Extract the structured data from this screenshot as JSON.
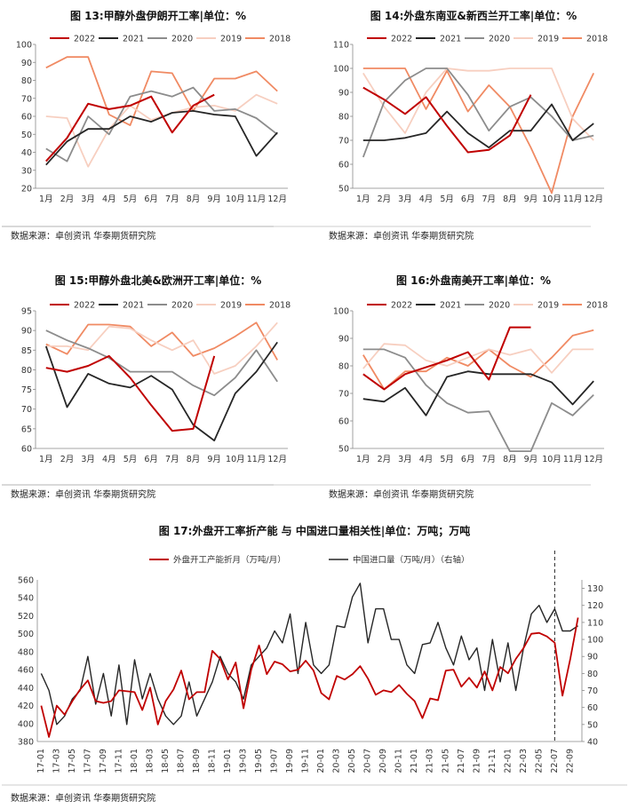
{
  "source_label": "数据来源：卓创资讯  华泰期货研究院",
  "colors": {
    "2022": "#c00000",
    "2021": "#262626",
    "2020": "#8c8c8c",
    "2019": "#f7cfc0",
    "2018": "#f08a63",
    "red": "#c00000",
    "black": "#262626"
  },
  "chart_data": [
    {
      "type": "line",
      "title": "图 13:甲醇外盘伊朗开工率|单位：%",
      "categories": [
        "1月",
        "2月",
        "3月",
        "4月",
        "5月",
        "6月",
        "7月",
        "8月",
        "9月",
        "10月",
        "11月",
        "12月"
      ],
      "ylim": [
        20,
        100
      ],
      "yticks": [
        20,
        30,
        40,
        50,
        60,
        70,
        80,
        90,
        100
      ],
      "series": [
        {
          "name": "2022",
          "values": [
            35,
            48,
            67,
            64,
            66,
            71,
            51,
            66,
            72,
            null,
            null,
            null
          ]
        },
        {
          "name": "2021",
          "values": [
            33,
            46,
            53,
            53,
            60,
            57,
            62,
            63,
            61,
            60,
            38,
            51
          ]
        },
        {
          "name": "2020",
          "values": [
            42,
            35,
            60,
            50,
            71,
            74,
            71,
            76,
            63,
            64,
            59,
            50
          ]
        },
        {
          "name": "2019",
          "values": [
            60,
            59,
            32,
            53,
            66,
            58,
            62,
            65,
            66,
            63,
            72,
            67
          ]
        },
        {
          "name": "2018",
          "values": [
            87,
            93,
            93,
            61,
            55,
            85,
            84,
            63,
            81,
            81,
            85,
            74
          ]
        }
      ]
    },
    {
      "type": "line",
      "title": "图 14:外盘东南亚&新西兰开工率|单位：%",
      "categories": [
        "1月",
        "2月",
        "3月",
        "4月",
        "5月",
        "6月",
        "7月",
        "8月",
        "9月",
        "10月",
        "11月",
        "12月"
      ],
      "ylim": [
        50,
        110
      ],
      "yticks": [
        50,
        60,
        70,
        80,
        90,
        100,
        110
      ],
      "series": [
        {
          "name": "2022",
          "values": [
            92,
            87,
            81,
            88,
            76,
            65,
            66,
            72,
            89,
            null,
            null,
            null
          ]
        },
        {
          "name": "2021",
          "values": [
            70,
            70,
            71,
            73,
            82,
            73,
            67,
            74,
            74,
            85,
            70,
            77
          ]
        },
        {
          "name": "2020",
          "values": [
            63,
            86,
            95,
            100,
            100,
            89,
            74,
            84,
            88,
            80,
            70,
            72
          ]
        },
        {
          "name": "2019",
          "values": [
            98,
            84,
            73,
            90,
            100,
            99,
            99,
            100,
            100,
            100,
            79,
            70
          ]
        },
        {
          "name": "2018",
          "values": [
            100,
            100,
            100,
            83,
            99,
            82,
            93,
            84,
            67,
            48,
            80,
            98
          ]
        }
      ]
    },
    {
      "type": "line",
      "title": "图 15:甲醇外盘北美&欧洲开工率|单位：%",
      "categories": [
        "1月",
        "2月",
        "3月",
        "4月",
        "5月",
        "6月",
        "7月",
        "8月",
        "9月",
        "10月",
        "11月",
        "12月"
      ],
      "ylim": [
        60,
        95
      ],
      "yticks": [
        60,
        65,
        70,
        75,
        80,
        85,
        90,
        95
      ],
      "series": [
        {
          "name": "2022",
          "values": [
            80.5,
            79.5,
            81,
            83.5,
            78,
            71,
            64.5,
            65,
            83.5,
            null,
            null,
            null
          ]
        },
        {
          "name": "2021",
          "values": [
            86,
            70.5,
            79,
            76.5,
            75.5,
            78.5,
            75,
            66,
            62,
            74,
            79.5,
            87
          ]
        },
        {
          "name": "2020",
          "values": [
            90,
            87.5,
            85.5,
            83,
            79.5,
            79.5,
            79.5,
            76,
            73.5,
            78,
            85,
            77
          ]
        },
        {
          "name": "2019",
          "values": [
            86,
            86,
            85,
            91,
            90.5,
            87.5,
            85,
            87.5,
            79,
            81,
            86,
            92
          ]
        },
        {
          "name": "2018",
          "values": [
            86.5,
            84,
            91.5,
            91.5,
            91,
            86,
            89.5,
            83.5,
            85.5,
            88.5,
            92,
            82.5
          ]
        }
      ]
    },
    {
      "type": "line",
      "title": "图 16:外盘南美开工率|单位：%",
      "categories": [
        "1月",
        "2月",
        "3月",
        "4月",
        "5月",
        "6月",
        "7月",
        "8月",
        "9月",
        "10月",
        "11月",
        "12月"
      ],
      "ylim": [
        50,
        100
      ],
      "yticks": [
        50,
        60,
        70,
        80,
        90,
        100
      ],
      "series": [
        {
          "name": "2022",
          "values": [
            77,
            71.5,
            77,
            79.5,
            82,
            85,
            75,
            94,
            94,
            null,
            null,
            null
          ]
        },
        {
          "name": "2021",
          "values": [
            68,
            67,
            72,
            62,
            76,
            78,
            77,
            77,
            77,
            74,
            66,
            74.5
          ]
        },
        {
          "name": "2020",
          "values": [
            86,
            86,
            83,
            73,
            66.5,
            63,
            63.5,
            49,
            49,
            66.5,
            62,
            69.5
          ]
        },
        {
          "name": "2019",
          "values": [
            79,
            88,
            87.5,
            82,
            80,
            83,
            86,
            84,
            86,
            77.5,
            86,
            86
          ]
        },
        {
          "name": "2018",
          "values": [
            84,
            71.5,
            78,
            78,
            83,
            80,
            86,
            80,
            76,
            83,
            91,
            93
          ]
        }
      ]
    },
    {
      "type": "line",
      "title": "图 17:外盘开工率折产能  与  中国进口量相关性|单位：万吨；万吨",
      "x": [
        "17-01",
        "17-02",
        "17-03",
        "17-04",
        "17-05",
        "17-06",
        "17-07",
        "17-08",
        "17-09",
        "17-10",
        "17-11",
        "17-12",
        "18-01",
        "18-02",
        "18-03",
        "18-04",
        "18-05",
        "18-06",
        "18-07",
        "18-08",
        "18-09",
        "18-10",
        "18-11",
        "18-12",
        "19-01",
        "19-02",
        "19-03",
        "19-04",
        "19-05",
        "19-06",
        "19-07",
        "19-08",
        "19-09",
        "19-10",
        "19-11",
        "19-12",
        "20-01",
        "20-02",
        "20-03",
        "20-04",
        "20-05",
        "20-06",
        "20-07",
        "20-08",
        "20-09",
        "20-10",
        "20-11",
        "20-12",
        "21-01",
        "21-02",
        "21-03",
        "21-04",
        "21-05",
        "21-06",
        "21-07",
        "21-08",
        "21-09",
        "21-10",
        "21-11",
        "21-12",
        "22-01",
        "22-02",
        "22-03",
        "22-04",
        "22-05",
        "22-06",
        "22-07",
        "22-08",
        "22-09",
        "22-10"
      ],
      "xtick_labels": [
        "17-01",
        "17-03",
        "17-05",
        "17-07",
        "17-09",
        "17-11",
        "18-01",
        "18-03",
        "18-05",
        "18-07",
        "18-09",
        "18-11",
        "19-01",
        "19-03",
        "19-05",
        "19-07",
        "19-09",
        "19-11",
        "20-01",
        "20-03",
        "20-05",
        "20-07",
        "20-09",
        "20-11",
        "21-01",
        "21-03",
        "21-05",
        "21-07",
        "21-09",
        "21-11",
        "22-01",
        "22-03",
        "22-05",
        "22-07",
        "22-09"
      ],
      "ylim": [
        380,
        560
      ],
      "yticks": [
        380,
        400,
        420,
        440,
        460,
        480,
        500,
        520,
        540,
        560
      ],
      "y2lim": [
        40,
        135
      ],
      "y2ticks": [
        40,
        50,
        60,
        70,
        80,
        90,
        100,
        110,
        120,
        130
      ],
      "vline_at": "22-07",
      "series": [
        {
          "name": "外盘开工产能折月（万吨/月）",
          "axis": "left",
          "values": [
            420,
            385,
            420,
            410,
            425,
            438,
            448,
            425,
            423,
            425,
            437,
            436,
            435,
            415,
            440,
            399,
            425,
            438,
            459,
            427,
            435,
            435,
            481,
            472,
            449,
            468,
            417,
            460,
            487,
            455,
            469,
            466,
            458,
            460,
            470,
            459,
            434,
            427,
            453,
            449,
            455,
            464,
            450,
            432,
            437,
            435,
            443,
            433,
            425,
            406,
            428,
            426,
            459,
            460,
            441,
            451,
            440,
            458,
            437,
            463,
            456,
            472,
            484,
            500,
            501,
            497,
            490,
            431,
            472,
            518
          ]
        },
        {
          "name": "中国进口量（万吨/月）（右轴）",
          "axis": "right",
          "values": [
            80,
            70,
            50,
            55,
            65,
            70,
            90,
            62,
            80,
            55,
            85,
            50,
            88,
            65,
            80,
            65,
            55,
            50,
            55,
            75,
            55,
            65,
            75,
            90,
            80,
            75,
            65,
            85,
            90,
            95,
            105,
            98,
            115,
            80,
            110,
            85,
            80,
            85,
            108,
            107,
            125,
            133,
            98,
            118,
            118,
            100,
            100,
            85,
            80,
            97,
            98,
            110,
            95,
            85,
            102,
            88,
            95,
            70,
            100,
            75,
            98,
            70,
            95,
            115,
            120,
            110,
            118,
            105,
            105,
            108
          ]
        }
      ]
    }
  ]
}
